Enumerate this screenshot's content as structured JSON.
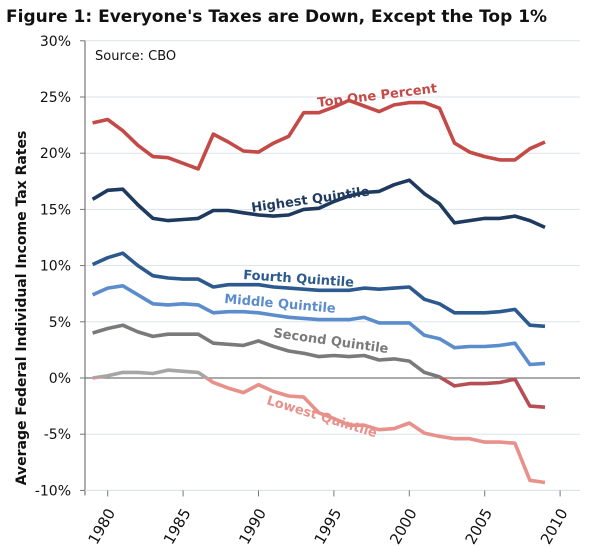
{
  "chart_data": {
    "type": "line",
    "title": "Figure 1: Everyone's Taxes are Down, Except the Top 1%",
    "source": "Source: CBO",
    "xlabel": "",
    "ylabel": "Average Federal Individual Income Tax Rates",
    "xlim": [
      1979,
      2010
    ],
    "ylim": [
      -10,
      30
    ],
    "xticks": [
      1980,
      1985,
      1990,
      1995,
      2000,
      2005,
      2010
    ],
    "xtick_labels": [
      "1980",
      "1985",
      "1990",
      "1995",
      "2000",
      "2005",
      "2010"
    ],
    "yticks": [
      30,
      25,
      20,
      15,
      10,
      5,
      0,
      -5,
      -10
    ],
    "ytick_labels": [
      "30%",
      "25%",
      "20%",
      "15%",
      "10%",
      "5%",
      "0%",
      "-5%",
      "-10%"
    ],
    "negative_tick_color": "#e08a85",
    "grid": true,
    "negative_segment_color": "#b54e55",
    "positive_low_segment_color": "#a6a6a6",
    "x": [
      1979,
      1980,
      1981,
      1982,
      1983,
      1984,
      1985,
      1986,
      1987,
      1988,
      1989,
      1990,
      1991,
      1992,
      1993,
      1994,
      1995,
      1996,
      1997,
      1998,
      1999,
      2000,
      2001,
      2002,
      2003,
      2004,
      2005,
      2006,
      2007,
      2008,
      2009
    ],
    "series": [
      {
        "name": "Top One Percent",
        "color": "#c44a47",
        "values": [
          22.7,
          23.0,
          22.0,
          20.7,
          19.7,
          19.6,
          19.1,
          18.6,
          21.7,
          21.0,
          20.2,
          20.1,
          20.9,
          21.5,
          23.6,
          23.6,
          24.1,
          24.7,
          24.2,
          23.7,
          24.3,
          24.5,
          24.5,
          24.0,
          20.9,
          20.1,
          19.7,
          19.4,
          19.4,
          20.4,
          21.0
        ]
      },
      {
        "name": "Highest Quintile",
        "color": "#1f3a5f",
        "values": [
          15.9,
          16.7,
          16.8,
          15.4,
          14.2,
          14.0,
          14.1,
          14.2,
          14.9,
          14.9,
          14.7,
          14.5,
          14.4,
          14.5,
          15.0,
          15.1,
          15.7,
          16.2,
          16.5,
          16.6,
          17.2,
          17.6,
          16.4,
          15.5,
          13.8,
          14.0,
          14.2,
          14.2,
          14.4,
          14.0,
          13.4
        ]
      },
      {
        "name": "Fourth Quintile",
        "color": "#2d5a8e",
        "values": [
          10.1,
          10.7,
          11.1,
          10.0,
          9.1,
          8.9,
          8.8,
          8.8,
          8.1,
          8.3,
          8.3,
          8.3,
          8.1,
          8.0,
          7.9,
          7.8,
          7.8,
          7.8,
          8.0,
          7.9,
          8.0,
          8.1,
          7.0,
          6.6,
          5.8,
          5.8,
          5.8,
          5.9,
          6.1,
          4.7,
          4.6
        ]
      },
      {
        "name": "Middle Quintile",
        "color": "#5b8dcc",
        "values": [
          7.4,
          8.0,
          8.2,
          7.4,
          6.6,
          6.5,
          6.6,
          6.5,
          5.8,
          5.9,
          5.9,
          5.8,
          5.6,
          5.4,
          5.3,
          5.2,
          5.2,
          5.2,
          5.4,
          4.9,
          4.9,
          4.9,
          3.8,
          3.5,
          2.7,
          2.8,
          2.8,
          2.9,
          3.1,
          1.2,
          1.3
        ]
      },
      {
        "name": "Second Quintile",
        "color": "#7a7a7a",
        "values": [
          4.0,
          4.4,
          4.7,
          4.1,
          3.7,
          3.9,
          3.9,
          3.9,
          3.1,
          3.0,
          2.9,
          3.3,
          2.8,
          2.4,
          2.2,
          1.9,
          2.0,
          1.9,
          2.0,
          1.6,
          1.7,
          1.5,
          0.5,
          0.1,
          -0.7,
          -0.5,
          -0.5,
          -0.4,
          -0.1,
          -2.5,
          -2.6
        ]
      },
      {
        "name": "Lowest Quintile",
        "color": "#e8918b",
        "values": [
          0.0,
          0.2,
          0.5,
          0.5,
          0.4,
          0.7,
          0.6,
          0.5,
          -0.4,
          -0.9,
          -1.3,
          -0.6,
          -1.2,
          -1.6,
          -1.7,
          -3.1,
          -3.6,
          -4.2,
          -4.2,
          -4.6,
          -4.5,
          -4.0,
          -4.9,
          -5.2,
          -5.4,
          -5.4,
          -5.7,
          -5.7,
          -5.8,
          -9.1,
          -9.3
        ]
      }
    ]
  }
}
